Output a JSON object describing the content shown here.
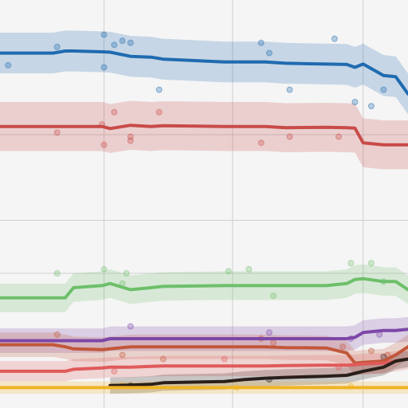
{
  "chart_data": {
    "type": "line",
    "title": "",
    "xlabel": "",
    "ylabel": "",
    "xlim": [
      0,
      100
    ],
    "ylim": [
      0,
      100
    ],
    "grid": true,
    "grid_x": [
      25.5,
      57,
      89
    ],
    "grid_y": [
      33,
      46,
      67
    ],
    "x": [
      0,
      13,
      16,
      18,
      25,
      27,
      32,
      37,
      40,
      55,
      60,
      65,
      70,
      80,
      85,
      87,
      89,
      94,
      97,
      100
    ],
    "series": [
      {
        "color": "#1f6bb0",
        "band": 5,
        "values": [
          87,
          87,
          87.5,
          87.5,
          87.3,
          87.2,
          86.2,
          86,
          85.5,
          84.8,
          84.8,
          84.8,
          84.5,
          84.3,
          84.2,
          83.5,
          84.3,
          81.5,
          81.2,
          77
        ],
        "points": [
          [
            2,
            84
          ],
          [
            14,
            88.5
          ],
          [
            25.5,
            91.5
          ],
          [
            25.5,
            83.5
          ],
          [
            28,
            89
          ],
          [
            30,
            90
          ],
          [
            32,
            89.5
          ],
          [
            39,
            78
          ],
          [
            64,
            89.5
          ],
          [
            66,
            87
          ],
          [
            71,
            78
          ],
          [
            82,
            90.5
          ],
          [
            87,
            75
          ],
          [
            91,
            74
          ],
          [
            94,
            78
          ]
        ]
      },
      {
        "color": "#c84b48",
        "band": 6,
        "values": [
          69,
          69,
          69,
          69,
          69,
          68.5,
          69.3,
          69,
          69.2,
          69,
          69,
          69,
          68.7,
          68.8,
          68.7,
          68.6,
          65,
          64.5,
          64.5,
          64.5
        ],
        "points": [
          [
            14,
            67.5
          ],
          [
            25,
            69.5
          ],
          [
            25.5,
            64.5
          ],
          [
            28,
            72.5
          ],
          [
            32,
            66.5
          ],
          [
            32,
            65.5
          ],
          [
            39,
            72.5
          ],
          [
            64,
            65
          ],
          [
            71,
            66.5
          ],
          [
            83,
            66.5
          ]
        ]
      },
      {
        "color": "#6dbf6a",
        "band": 3.5,
        "values": [
          27,
          27,
          27,
          29.5,
          30,
          30.5,
          29,
          29.5,
          29.8,
          30,
          30,
          30,
          30,
          30,
          30.5,
          31.5,
          31.7,
          31,
          31,
          29
        ],
        "points": [
          [
            14,
            33
          ],
          [
            25.5,
            34
          ],
          [
            30,
            30.5
          ],
          [
            31,
            33
          ],
          [
            56,
            33.5
          ],
          [
            61,
            34
          ],
          [
            67,
            27.5
          ],
          [
            86,
            35.5
          ],
          [
            91,
            35.5
          ],
          [
            94,
            31
          ]
        ]
      },
      {
        "color": "#7d47a8",
        "band": 3,
        "values": [
          16.5,
          16.5,
          16.5,
          16.5,
          16.5,
          17,
          17,
          17,
          17,
          17,
          17,
          17,
          17,
          17,
          17,
          17.3,
          18.5,
          19,
          19,
          19.3
        ],
        "points": [
          [
            32,
            20
          ],
          [
            66,
            18.5
          ],
          [
            86,
            17
          ],
          [
            93,
            18
          ]
        ]
      },
      {
        "color": "#c2573a",
        "band": 3,
        "values": [
          15.5,
          15.5,
          15,
          14.5,
          14.3,
          14.5,
          15,
          15,
          15,
          15,
          15,
          15,
          14.8,
          14.7,
          13.5,
          11,
          11.2,
          11.5,
          13,
          15
        ],
        "points": [
          [
            14,
            18
          ],
          [
            30,
            13
          ],
          [
            40,
            12
          ],
          [
            64,
            17
          ],
          [
            67,
            16
          ],
          [
            84,
            15
          ],
          [
            91,
            14
          ],
          [
            95,
            13
          ]
        ]
      },
      {
        "color": "#e05a5a",
        "band": 2.5,
        "values": [
          9,
          9,
          9,
          9.5,
          9.8,
          10,
          10,
          10.2,
          10.3,
          10.3,
          10.3,
          10.3,
          10.4,
          10.5,
          10.5,
          10.6,
          10.8,
          11,
          11.5,
          12
        ],
        "points": [
          [
            28,
            9
          ],
          [
            55,
            12
          ],
          [
            83,
            10
          ]
        ]
      },
      {
        "color": "#2a1f1a",
        "band": 2,
        "start": 5,
        "values": [
          null,
          null,
          null,
          null,
          null,
          5.5,
          5.6,
          5.8,
          6.2,
          6.5,
          7,
          7.3,
          7.5,
          7.8,
          8,
          8.5,
          9,
          10,
          11.5,
          12
        ],
        "points": [
          [
            32,
            5.5
          ],
          [
            66,
            7
          ],
          [
            94,
            12.5
          ]
        ]
      },
      {
        "color": "#f0b323",
        "band": 1.5,
        "values": [
          5,
          5,
          5,
          5,
          5,
          5,
          5,
          5,
          5,
          5,
          5,
          5,
          5,
          5,
          5,
          5,
          5,
          5,
          5,
          5
        ],
        "points": [
          [
            30,
            5.5
          ],
          [
            58,
            5
          ],
          [
            86,
            5.3
          ]
        ]
      }
    ]
  }
}
